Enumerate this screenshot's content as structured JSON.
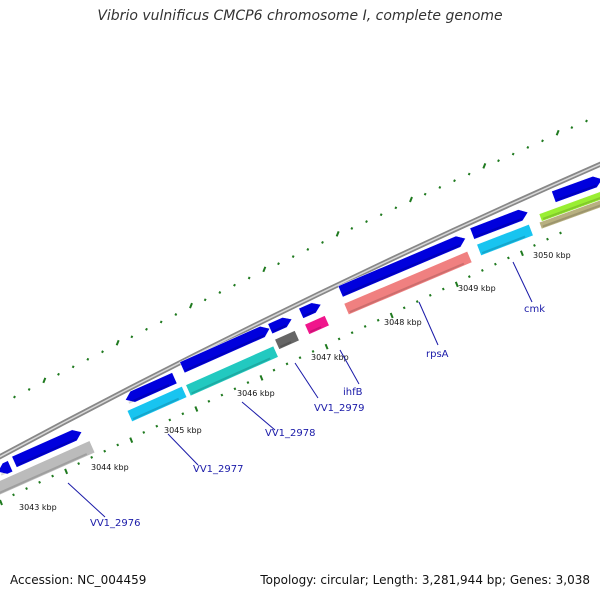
{
  "title": "Vibrio vulnificus CMCP6 chromosome I, complete genome",
  "footer": {
    "accession": "Accession: NC_004459",
    "summary": "Topology: circular; Length: 3,281,944 bp; Genes: 3,038"
  },
  "map": {
    "backbone_color": "#888888",
    "tick_color": "#1f7a1f",
    "label_line_color": "#1a1aa8",
    "position_labels": [
      "3043 kbp",
      "3044 kbp",
      "3045 kbp",
      "3046 kbp",
      "3047 kbp",
      "3048 kbp",
      "3049 kbp",
      "3050 kbp"
    ],
    "gene_labels": [
      "VV1_2976",
      "VV1_2977",
      "VV1_2978",
      "VV1_2979",
      "ihfB",
      "rpsA",
      "cmk"
    ],
    "colors": {
      "cds_arrow": "#0000dd",
      "gray": "#bbbbbb",
      "cyan": "#18c4f0",
      "teal": "#22c9c0",
      "darkgray": "#666666",
      "magenta": "#f0168c",
      "salmon": "#f08080",
      "lime": "#99ee33",
      "khaki": "#b8b080"
    }
  }
}
